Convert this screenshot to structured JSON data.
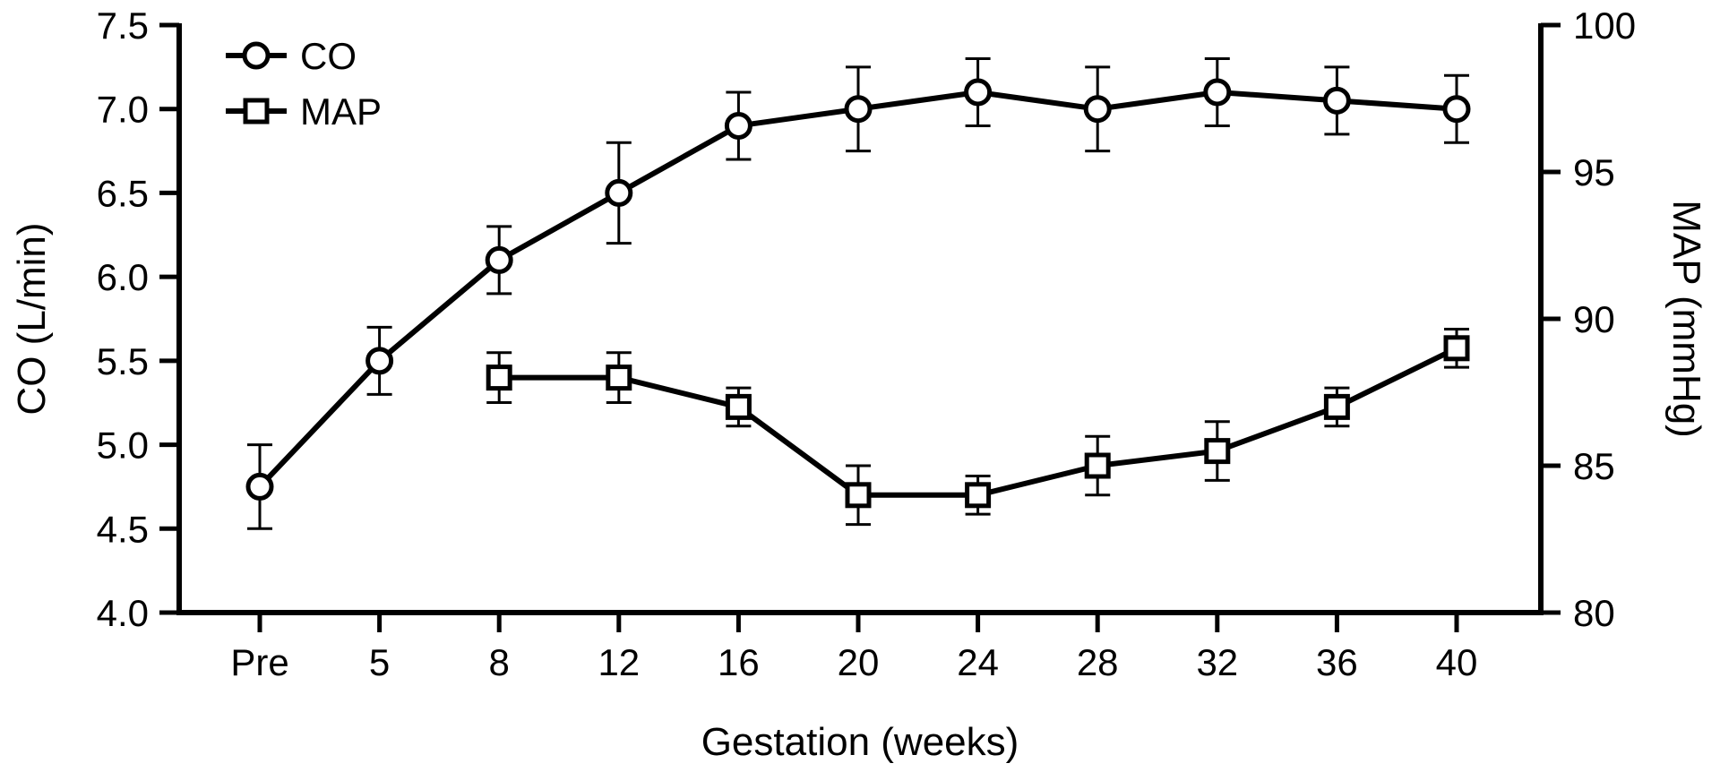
{
  "chart_data": {
    "type": "line",
    "categories": [
      "Pre",
      "5",
      "8",
      "12",
      "16",
      "20",
      "24",
      "28",
      "32",
      "36",
      "40"
    ],
    "xlabel": "Gestation (weeks)",
    "ylabel_left": "CO (L/min)",
    "ylabel_right": "MAP (mmHg)",
    "ylim_left": [
      4.0,
      7.5
    ],
    "ylim_right": [
      80,
      100
    ],
    "yticks_left": [
      "4.0",
      "4.5",
      "5.0",
      "5.5",
      "6.0",
      "6.5",
      "7.0",
      "7.5"
    ],
    "yticks_right": [
      "80",
      "85",
      "90",
      "95",
      "100"
    ],
    "grid": false,
    "legend_position": "top-left",
    "series": [
      {
        "name": "CO",
        "axis": "left",
        "marker": "circle",
        "values": [
          4.75,
          5.5,
          6.1,
          6.5,
          6.9,
          7.0,
          7.1,
          7.0,
          7.1,
          7.05,
          7.0
        ],
        "errors": [
          0.25,
          0.2,
          0.2,
          0.3,
          0.2,
          0.25,
          0.2,
          0.25,
          0.2,
          0.2,
          0.2
        ]
      },
      {
        "name": "MAP",
        "axis": "right",
        "marker": "square",
        "values": [
          null,
          null,
          88,
          88,
          87,
          84,
          84,
          85,
          85.5,
          87,
          89
        ],
        "errors": [
          null,
          null,
          0.85,
          0.85,
          0.65,
          1.0,
          0.65,
          1.0,
          1.0,
          0.65,
          0.65
        ]
      }
    ]
  }
}
